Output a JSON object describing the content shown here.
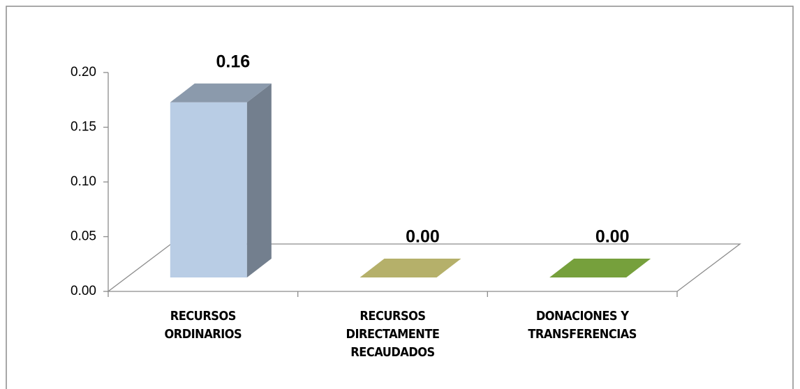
{
  "chart_data": {
    "type": "bar3d",
    "categories": [
      "RECURSOS ORDINARIOS",
      "RECURSOS DIRECTAMENTE RECAUDADOS",
      "DONACIONES Y TRANSFERENCIAS"
    ],
    "values": [
      0.16,
      0,
      0
    ],
    "value_labels": [
      "0.16",
      "0.00",
      "0.00"
    ],
    "colors": [
      "#b9cde5",
      "#b5b06a",
      "#76a03c"
    ],
    "ylim": [
      0,
      0.2
    ],
    "yticks": [
      {
        "value": 0,
        "label": "0.00"
      },
      {
        "value": 0.05,
        "label": "0.05"
      },
      {
        "value": 0.1,
        "label": "0.10"
      },
      {
        "value": 0.15,
        "label": "0.15"
      },
      {
        "value": 0.2,
        "label": "0.20"
      }
    ]
  }
}
